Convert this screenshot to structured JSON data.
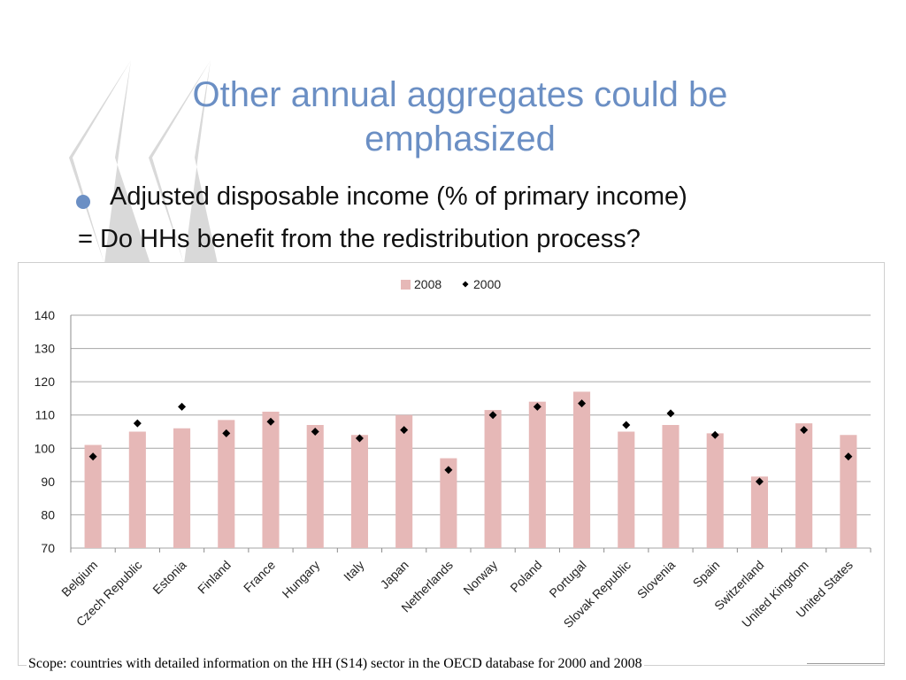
{
  "slide": {
    "title_line1": "Other annual aggregates could be",
    "title_line2": "emphasized",
    "bullet": "Adjusted disposable income (% of primary income)",
    "subline": "= Do HHs benefit from the redistribution process?",
    "footnote": "Scope: countries with detailed information on the HH (S14) sector in the OECD database for 2000 and 2008",
    "accent_color": "#6b8fc4",
    "decoration_color": "#d9d9d9"
  },
  "chart_data": {
    "type": "bar",
    "title": "",
    "xlabel": "",
    "ylabel": "",
    "categories": [
      "Belgium",
      "Czech Republic",
      "Estonia",
      "Finland",
      "France",
      "Hungary",
      "Italy",
      "Japan",
      "Netherlands",
      "Norway",
      "Poland",
      "Portugal",
      "Slovak Republic",
      "Slovenia",
      "Spain",
      "Switzerland",
      "United Kingdom",
      "United States"
    ],
    "series": [
      {
        "name": "2008",
        "kind": "bar",
        "color": "#e6b8b7",
        "values": [
          101,
          105,
          106,
          108.5,
          111,
          107,
          104,
          110,
          97,
          111.5,
          114,
          117,
          105,
          107,
          104.5,
          91.5,
          107.5,
          104
        ]
      },
      {
        "name": "2000",
        "kind": "marker",
        "color": "#000000",
        "values": [
          97.5,
          107.5,
          112.5,
          104.5,
          108,
          105,
          103,
          105.5,
          93.5,
          110,
          112.5,
          113.5,
          107,
          110.5,
          104,
          90,
          105.5,
          97.5
        ]
      }
    ],
    "ylim": [
      70,
      140
    ],
    "yticks": [
      "70",
      "80",
      "90",
      "100",
      "110",
      "120",
      "130",
      "140"
    ],
    "grid": true,
    "legend_position": "top-center"
  }
}
